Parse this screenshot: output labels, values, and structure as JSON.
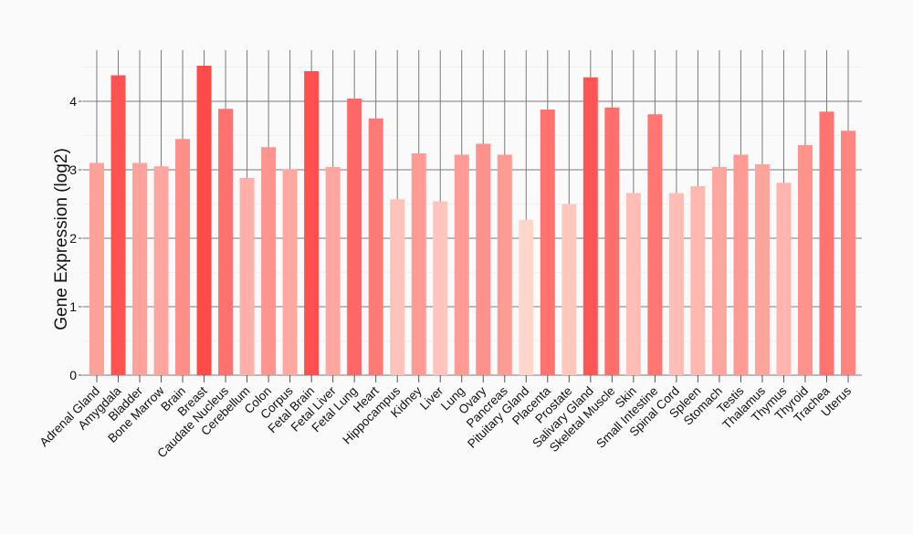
{
  "chart_data": {
    "type": "bar",
    "title": "",
    "xlabel": "",
    "ylabel": "Gene Expression (log2)",
    "ylim": [
      0,
      4.75
    ],
    "yticks": [
      0,
      1,
      2,
      3,
      4
    ],
    "grid": true,
    "color_low": "#ffd6cc",
    "color_high": "#ff4a4a",
    "categories": [
      "Adrenal Gland",
      "Amygdala",
      "Bladder",
      "Bone Marrow",
      "Brain",
      "Breast",
      "Caudate Nucleus",
      "Cerebellum",
      "Colon",
      "Corpus",
      "Fetal Brain",
      "Fetal Liver",
      "Fetal Lung",
      "Heart",
      "Hippocampus",
      "Kidney",
      "Liver",
      "Lung",
      "Ovary",
      "Pancreas",
      "Pituitary Gland",
      "Placenta",
      "Prostate",
      "Salivary Gland",
      "Skeletal Muscle",
      "Skin",
      "Small Intestine",
      "Spinal Cord",
      "Spleen",
      "Stomach",
      "Testis",
      "Thalamus",
      "Thymus",
      "Thyroid",
      "Trachea",
      "Uterus"
    ],
    "values": [
      3.1,
      4.38,
      3.1,
      3.05,
      3.45,
      4.52,
      3.89,
      2.88,
      3.33,
      3.01,
      4.44,
      3.04,
      4.04,
      3.75,
      2.57,
      3.24,
      2.54,
      3.22,
      3.38,
      3.22,
      2.27,
      3.88,
      2.5,
      4.35,
      3.91,
      2.66,
      3.81,
      2.66,
      2.76,
      3.04,
      3.22,
      3.08,
      2.81,
      3.36,
      3.85,
      3.57
    ]
  }
}
